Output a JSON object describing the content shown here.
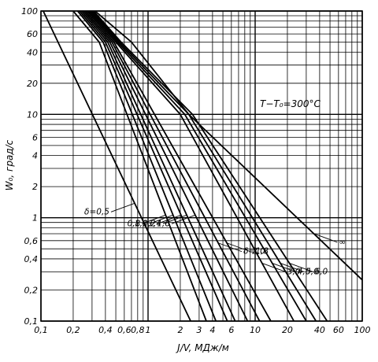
{
  "chart_data": {
    "type": "line",
    "title": "",
    "annotation": "T−T₀=300°C",
    "xlabel": "J/V, МДж/м",
    "ylabel": "W₀, град/с",
    "x_scale": "log",
    "y_scale": "log",
    "xlim": [
      0.1,
      100
    ],
    "ylim": [
      0.1,
      100
    ],
    "grid": true,
    "x_ticks": [
      {
        "value": 0.1,
        "label": "0,1"
      },
      {
        "value": 0.2,
        "label": "0,2"
      },
      {
        "value": 0.4,
        "label": "0,4"
      },
      {
        "value": 0.6,
        "label": "0,6"
      },
      {
        "value": 0.8,
        "label": "0,8"
      },
      {
        "value": 1,
        "label": "1"
      },
      {
        "value": 2,
        "label": "2"
      },
      {
        "value": 3,
        "label": "3"
      },
      {
        "value": 4,
        "label": "4"
      },
      {
        "value": 6,
        "label": "6"
      },
      {
        "value": 10,
        "label": "10"
      },
      {
        "value": 20,
        "label": "20"
      },
      {
        "value": 40,
        "label": "40"
      },
      {
        "value": 60,
        "label": "60"
      },
      {
        "value": 100,
        "label": "100"
      }
    ],
    "y_ticks": [
      {
        "value": 100,
        "label": "100"
      },
      {
        "value": 60,
        "label": "60"
      },
      {
        "value": 40,
        "label": "40"
      },
      {
        "value": 20,
        "label": "20"
      },
      {
        "value": 10,
        "label": "10"
      },
      {
        "value": 6,
        "label": "6"
      },
      {
        "value": 4,
        "label": "4"
      },
      {
        "value": 2,
        "label": "2"
      },
      {
        "value": 1,
        "label": "1"
      },
      {
        "value": 0.6,
        "label": "0,6"
      },
      {
        "value": 0.4,
        "label": "0,4"
      },
      {
        "value": 0.2,
        "label": "0,2"
      },
      {
        "value": 0.1,
        "label": "0,1"
      }
    ],
    "series": [
      {
        "name": "δ=0,5",
        "label_pos": "left",
        "points": [
          [
            0.105,
            100
          ],
          [
            2.5,
            0.1
          ]
        ]
      },
      {
        "name": "0,8",
        "label_pos": "left",
        "points": [
          [
            0.2,
            100
          ],
          [
            0.35,
            50
          ],
          [
            3.5,
            0.1
          ]
        ]
      },
      {
        "name": "1,0",
        "label_pos": "left",
        "points": [
          [
            0.22,
            100
          ],
          [
            0.38,
            50
          ],
          [
            4.3,
            0.1
          ]
        ]
      },
      {
        "name": "1,2",
        "label_pos": "left",
        "points": [
          [
            0.23,
            100
          ],
          [
            0.4,
            50
          ],
          [
            5.5,
            0.1
          ]
        ]
      },
      {
        "name": "1,4",
        "label_pos": "left",
        "points": [
          [
            0.24,
            100
          ],
          [
            0.42,
            50
          ],
          [
            6.5,
            0.1
          ]
        ]
      },
      {
        "name": "1,6",
        "label_pos": "left",
        "points": [
          [
            0.25,
            100
          ],
          [
            0.44,
            50
          ],
          [
            8.5,
            0.1
          ]
        ]
      },
      {
        "name": "δ=1,8",
        "label_pos": "right",
        "points": [
          [
            0.26,
            100
          ],
          [
            0.46,
            50
          ],
          [
            11,
            0.1
          ]
        ]
      },
      {
        "name": "2,0",
        "label_pos": "right",
        "points": [
          [
            0.27,
            100
          ],
          [
            0.48,
            50
          ],
          [
            14,
            0.1
          ]
        ]
      },
      {
        "name": "3,0",
        "label_pos": "right",
        "points": [
          [
            0.28,
            100
          ],
          [
            0.5,
            50
          ],
          [
            2,
            10
          ],
          [
            23,
            0.1
          ]
        ]
      },
      {
        "name": "4,0",
        "label_pos": "right",
        "points": [
          [
            0.29,
            100
          ],
          [
            0.52,
            50
          ],
          [
            2.2,
            10
          ],
          [
            30,
            0.1
          ]
        ]
      },
      {
        "name": "5,0",
        "label_pos": "right",
        "points": [
          [
            0.3,
            100
          ],
          [
            0.54,
            50
          ],
          [
            2.4,
            10
          ],
          [
            37,
            0.1
          ]
        ]
      },
      {
        "name": "6,0",
        "label_pos": "right",
        "points": [
          [
            0.31,
            100
          ],
          [
            0.56,
            50
          ],
          [
            2.6,
            10
          ],
          [
            47,
            0.1
          ]
        ]
      },
      {
        "name": "∞",
        "label_pos": "right",
        "points": [
          [
            0.32,
            100
          ],
          [
            0.7,
            50
          ],
          [
            2.4,
            10
          ],
          [
            100,
            0.25
          ]
        ]
      }
    ]
  }
}
